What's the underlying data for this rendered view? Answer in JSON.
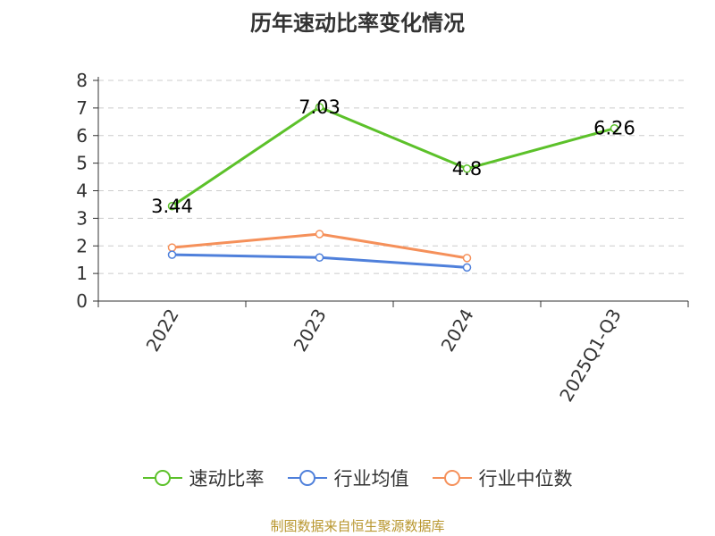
{
  "chart_data": {
    "type": "line",
    "title": "历年速动比率变化情况",
    "categories": [
      "2022",
      "2023",
      "2024",
      "2025Q1-Q3"
    ],
    "ylim": [
      0,
      8
    ],
    "yticks": [
      "0",
      "1",
      "2",
      "3",
      "4",
      "5",
      "6",
      "7",
      "8"
    ],
    "grid": true,
    "legend_position": "bottom",
    "series": [
      {
        "name": "速动比率",
        "color": "#5cc12a",
        "values": [
          3.44,
          7.03,
          4.8,
          6.26
        ],
        "labels": [
          "3.44",
          "7.03",
          "4.8",
          "6.26"
        ]
      },
      {
        "name": "行业均值",
        "color": "#4f80db",
        "values": [
          1.68,
          1.58,
          1.22,
          null
        ]
      },
      {
        "name": "行业中位数",
        "color": "#f5905a",
        "values": [
          1.94,
          2.43,
          1.56,
          null
        ]
      }
    ]
  },
  "source": "制图数据来自恒生聚源数据库"
}
